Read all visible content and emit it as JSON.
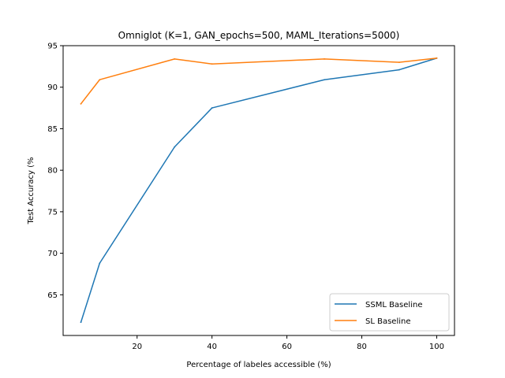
{
  "chart_data": {
    "type": "line",
    "title": "Omniglot (K=1, GAN_epochs=500, MAML_Iterations=5000)",
    "xlabel": "Percentage of labeles accessible (%)",
    "ylabel": "Test Accuracy (%",
    "xlim": [
      0.25,
      104.75
    ],
    "ylim": [
      60.1,
      95.0
    ],
    "xticks": [
      20,
      40,
      60,
      80,
      100
    ],
    "yticks": [
      65,
      70,
      75,
      80,
      85,
      90,
      95
    ],
    "grid": false,
    "legend_position": "lower right",
    "series": [
      {
        "name": "SSML Baseline",
        "color": "#1f77b4",
        "x": [
          5,
          10,
          30,
          40,
          70,
          90,
          100
        ],
        "y": [
          61.7,
          68.8,
          82.8,
          87.5,
          90.9,
          92.1,
          93.5
        ]
      },
      {
        "name": "SL Baseline",
        "color": "#ff7f0e",
        "x": [
          5,
          10,
          30,
          40,
          70,
          90,
          100
        ],
        "y": [
          88.0,
          90.9,
          93.4,
          92.8,
          93.4,
          93.0,
          93.5
        ]
      }
    ]
  }
}
